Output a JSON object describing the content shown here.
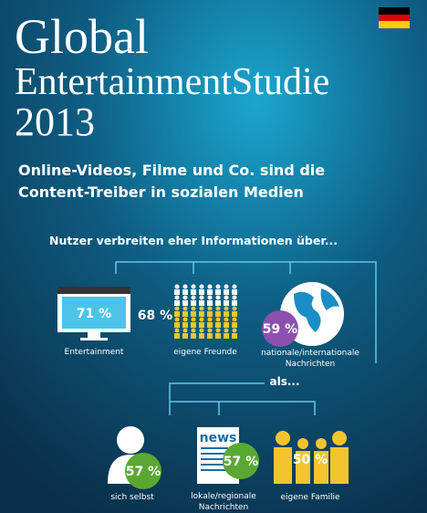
{
  "header": {
    "title_lines": [
      "Global",
      "EntertainmentStudie",
      "2013"
    ]
  },
  "subtitle_lines": [
    "Online-Videos, Filme und Co. sind die",
    "Content-Treiber in sozialen Medien"
  ],
  "question": "Nutzer verbreiten eher Informationen über...",
  "top_items": [
    {
      "value_label": "71 %",
      "label_lines": [
        "Entertainment"
      ]
    },
    {
      "value_label": "68 %",
      "label_lines": [
        "eigene Freunde"
      ]
    },
    {
      "value_label": "59 %",
      "label_lines": [
        "nationale/internationale",
        "Nachrichten"
      ]
    }
  ],
  "connector": "als...",
  "bottom_items": [
    {
      "value_label": "57 %",
      "label_lines": [
        "sich selbst"
      ]
    },
    {
      "value_label": "57 %",
      "label_lines": [
        "lokale/regionale",
        "Nachrichten"
      ],
      "icon_text": "news"
    },
    {
      "value_label": "50 %",
      "label_lines": [
        "eigene Familie"
      ]
    }
  ]
}
